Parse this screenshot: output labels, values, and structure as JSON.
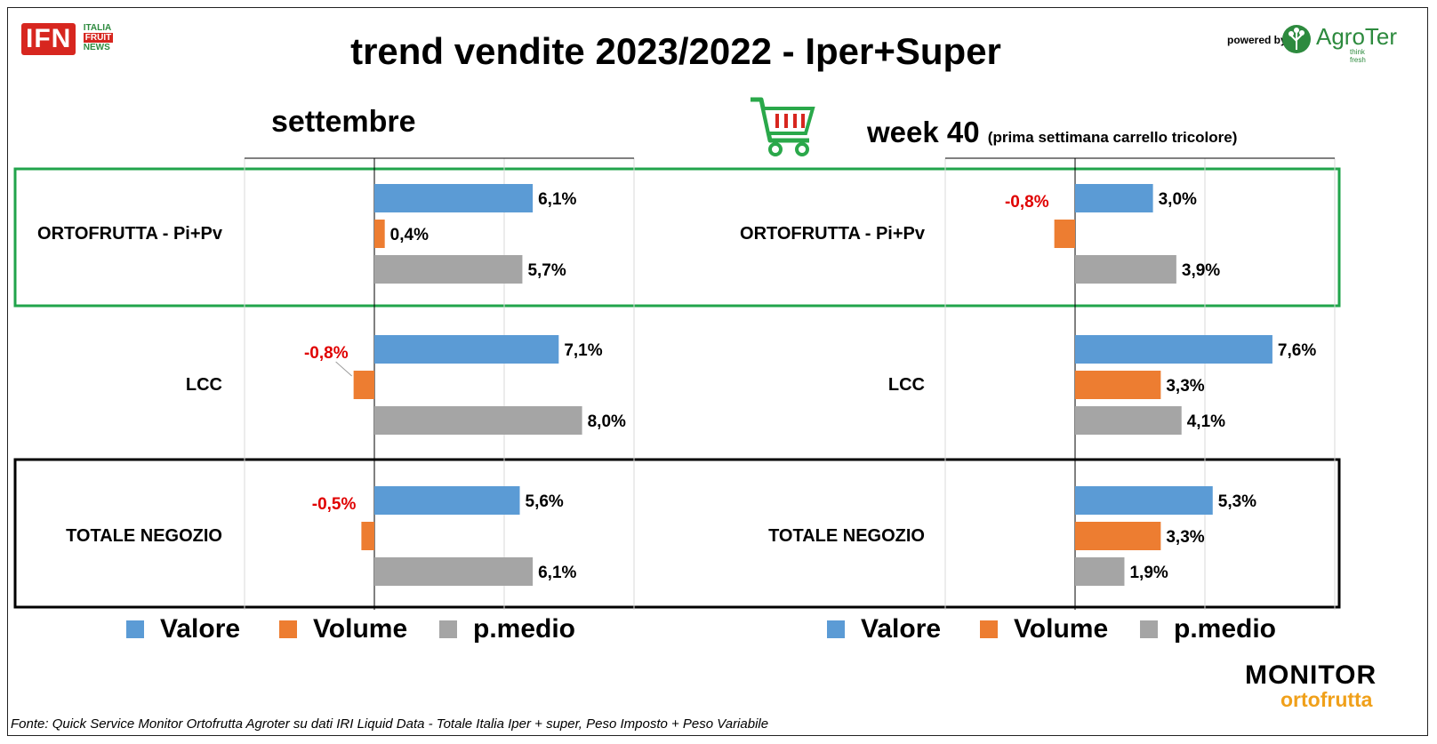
{
  "header": {
    "title": "trend vendite 2023/2022 - Iper+Super",
    "ifn_logo": "IFN",
    "ifn_lines": [
      "ITALIA",
      "FRUIT",
      "NEWS"
    ],
    "powered_by": "powered by",
    "agroter_name": "AgroTer",
    "agroter_tagline": "think fresh",
    "cart_icon": "shopping-cart-icon"
  },
  "left_panel": {
    "subtitle": "settembre"
  },
  "right_panel": {
    "subtitle": "week 40",
    "note": "(prima settimana carrello tricolore)"
  },
  "footer": {
    "source": "Fonte: Quick Service Monitor Ortofrutta Agroter su dati IRI Liquid Data - Totale Italia Iper + super, Peso Imposto + Peso Variabile",
    "monitor_line1": "MONITOR",
    "monitor_line2": "ortofrutta"
  },
  "colors": {
    "valore": "#5b9bd5",
    "volume": "#ed7d31",
    "pmedio": "#a5a5a5",
    "negative_label": "#e00000",
    "highlight_green": "#21a44b",
    "highlight_black": "#000000"
  },
  "chart_data": [
    {
      "type": "bar",
      "orientation": "horizontal",
      "title": "settembre",
      "categories": [
        "ORTOFRUTTA - Pi+Pv",
        "LCC",
        "TOTALE NEGOZIO"
      ],
      "series": [
        {
          "name": "Valore",
          "values": [
            6.1,
            7.1,
            5.6
          ],
          "labels": [
            "6,1%",
            "7,1%",
            "5,6%"
          ]
        },
        {
          "name": "Volume",
          "values": [
            0.4,
            -0.8,
            -0.5
          ],
          "labels": [
            "0,4%",
            "-0,8%",
            "-0,5%"
          ]
        },
        {
          "name": "p.medio",
          "values": [
            5.7,
            8.0,
            6.1
          ],
          "labels": [
            "5,7%",
            "8,0%",
            "6,1%"
          ]
        }
      ],
      "xlim": [
        -5,
        10
      ],
      "grid": true,
      "legend": "bottom"
    },
    {
      "type": "bar",
      "orientation": "horizontal",
      "title": "week 40",
      "categories": [
        "ORTOFRUTTA - Pi+Pv",
        "LCC",
        "TOTALE NEGOZIO"
      ],
      "series": [
        {
          "name": "Valore",
          "values": [
            3.0,
            7.6,
            5.3
          ],
          "labels": [
            "3,0%",
            "7,6%",
            "5,3%"
          ]
        },
        {
          "name": "Volume",
          "values": [
            -0.8,
            3.3,
            3.3
          ],
          "labels": [
            "-0,8%",
            "3,3%",
            "3,3%"
          ]
        },
        {
          "name": "p.medio",
          "values": [
            3.9,
            4.1,
            1.9
          ],
          "labels": [
            "3,9%",
            "4,1%",
            "1,9%"
          ]
        }
      ],
      "xlim": [
        -5,
        10
      ],
      "grid": true,
      "legend": "bottom"
    }
  ]
}
